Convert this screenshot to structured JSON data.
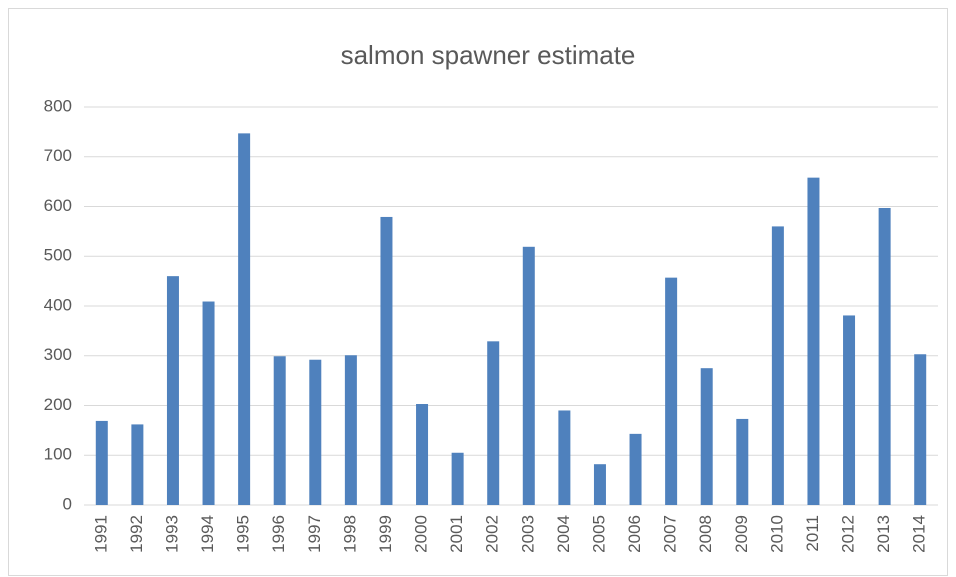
{
  "chart_data": {
    "type": "bar",
    "title": "salmon spawner estimate",
    "categories": [
      "1991",
      "1992",
      "1993",
      "1994",
      "1995",
      "1996",
      "1997",
      "1998",
      "1999",
      "2000",
      "2001",
      "2002",
      "2003",
      "2004",
      "2005",
      "2006",
      "2007",
      "2008",
      "2009",
      "2010",
      "2011",
      "2012",
      "2013",
      "2014"
    ],
    "values": [
      169,
      162,
      460,
      409,
      747,
      299,
      292,
      301,
      579,
      203,
      105,
      329,
      519,
      190,
      82,
      143,
      457,
      275,
      173,
      560,
      658,
      381,
      597,
      303
    ],
    "color": "#4f81bd",
    "ylim": [
      0,
      800
    ],
    "yticks": [
      0,
      100,
      200,
      300,
      400,
      500,
      600,
      700,
      800
    ],
    "grid": true
  }
}
